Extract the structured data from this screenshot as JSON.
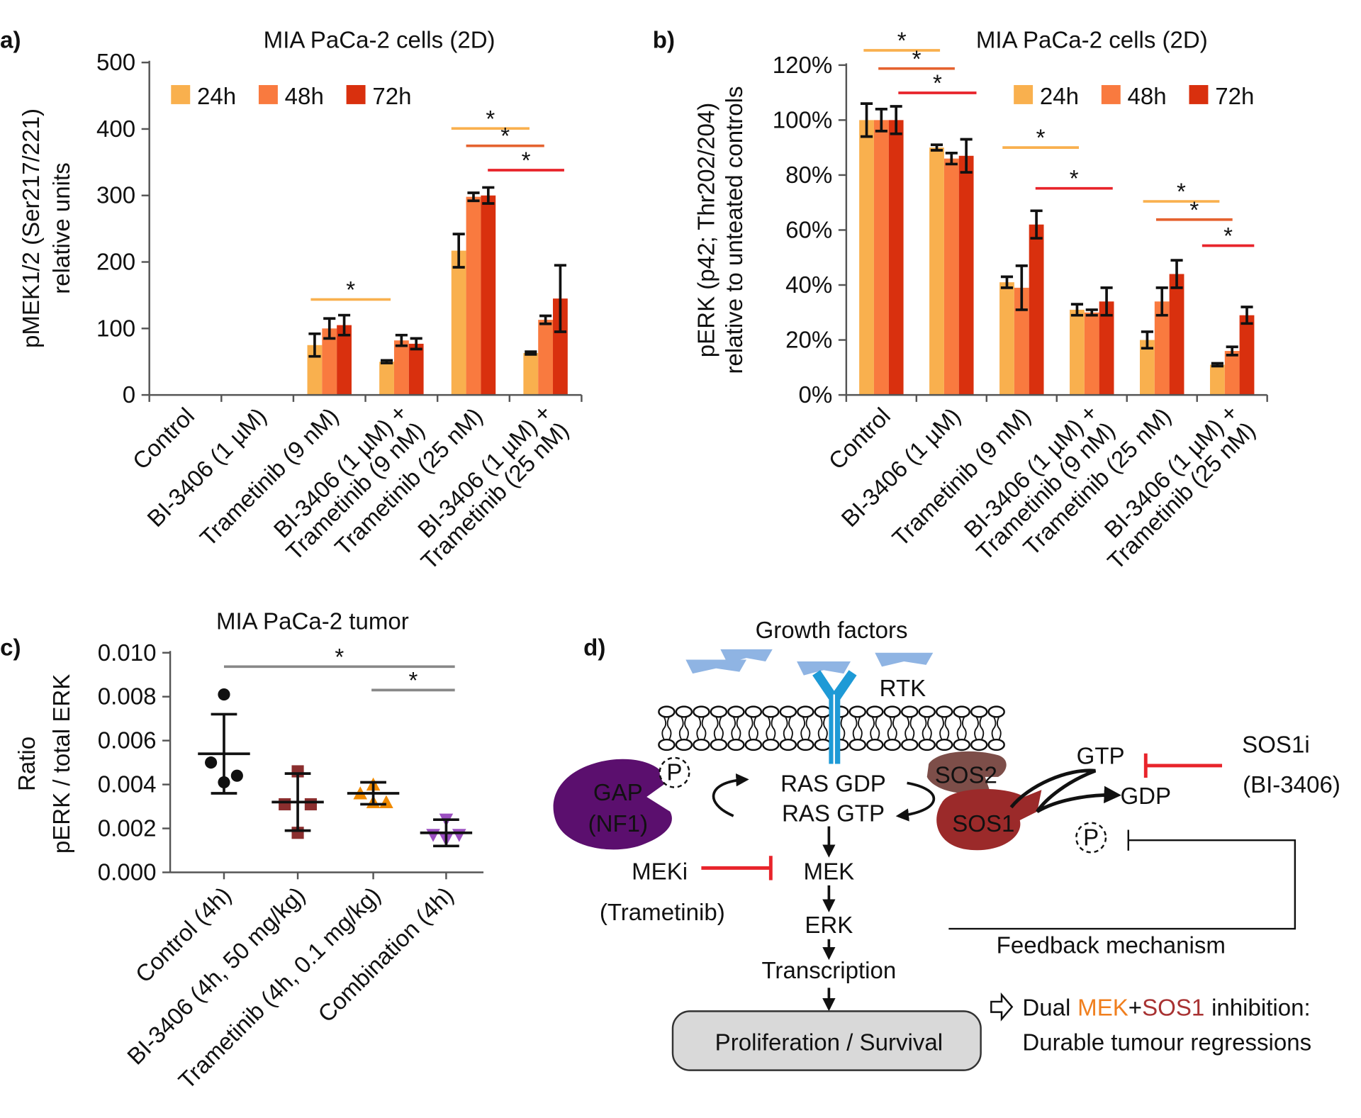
{
  "chart_data": [
    {
      "type": "bar",
      "panel_label": "a)",
      "title": "MIA PaCa-2 cells (2D)",
      "ylabel": [
        "pMEK1/2 (Ser217/221)",
        "relative units"
      ],
      "categories": [
        "Control",
        "BI-3406 (1 µM)",
        "Trametinib (9 nM)",
        "BI-3406 (1 µM) + Trametinib (9 nM)",
        "Trametinib (25 nM)",
        "BI-3406 (1 µM) + Trametinib (25 nM)"
      ],
      "series": [
        {
          "name": "24h",
          "color": "#f9b04e",
          "values": [
            0,
            0,
            75,
            50,
            217,
            63
          ],
          "errors": [
            null,
            null,
            17,
            2,
            25,
            2
          ]
        },
        {
          "name": "48h",
          "color": "#f97a3f",
          "values": [
            0,
            0,
            100,
            82,
            298,
            113
          ],
          "errors": [
            null,
            null,
            15,
            8,
            6,
            6
          ]
        },
        {
          "name": "72h",
          "color": "#d9300e",
          "values": [
            0,
            0,
            105,
            77,
            300,
            145
          ],
          "errors": [
            null,
            null,
            15,
            8,
            12,
            50
          ]
        }
      ],
      "ylim": [
        0,
        500
      ],
      "yticks": [
        0,
        100,
        200,
        300,
        400,
        500
      ],
      "annotations": [
        "*",
        "*",
        "*",
        "*"
      ]
    },
    {
      "type": "bar",
      "panel_label": "b)",
      "title": "MIA PaCa-2 cells (2D)",
      "ylabel": [
        "pERK (p42; Thr202/204)",
        "relative to unteated controls"
      ],
      "categories": [
        "Control",
        "BI-3406 (1 µM)",
        "Trametinib (9 nM)",
        "BI-3406 (1 µM) + Trametinib (9 nM)",
        "Trametinib (25 nM)",
        "BI-3406 (1 µM) + Trametinib (25 nM)"
      ],
      "series": [
        {
          "name": "24h",
          "color": "#f9b04e",
          "values": [
            100,
            90,
            41,
            31,
            20,
            11
          ],
          "errors": [
            6,
            1,
            2,
            2,
            3,
            0.5
          ]
        },
        {
          "name": "48h",
          "color": "#f97a3f",
          "values": [
            100,
            86,
            39,
            30,
            34,
            16
          ],
          "errors": [
            4,
            2,
            8,
            1,
            5,
            1.5
          ]
        },
        {
          "name": "72h",
          "color": "#d9300e",
          "values": [
            100,
            87,
            62,
            34,
            44,
            29
          ],
          "errors": [
            5,
            6,
            5,
            5,
            5,
            3
          ]
        }
      ],
      "ylim": [
        0,
        120
      ],
      "yticks": [
        {
          "value": 0,
          "label": "0%"
        },
        {
          "value": 20,
          "label": "20%"
        },
        {
          "value": 40,
          "label": "40%"
        },
        {
          "value": 60,
          "label": "60%"
        },
        {
          "value": 80,
          "label": "80%"
        },
        {
          "value": 100,
          "label": "100%"
        },
        {
          "value": 120,
          "label": "120%"
        }
      ],
      "annotations": [
        "*",
        "*",
        "*",
        "*",
        "*",
        "*",
        "*",
        "*"
      ]
    },
    {
      "type": "strip",
      "panel_label": "c)",
      "title": "MIA PaCa-2 tumor",
      "ylabel": [
        "Ratio",
        "pERK / total ERK"
      ],
      "categories": [
        "Control (4h)",
        "BI-3406 (4h, 50 mg/kg)",
        "Trametinib (4h, 0.1 mg/kg)",
        "Combination (4h)"
      ],
      "series": [
        {
          "color": "#111111",
          "marker": "circle",
          "values": [
            0.0081,
            0.005,
            0.0044,
            0.0041
          ],
          "mean": 0.0054,
          "sd": 0.0018
        },
        {
          "color": "#8b2e2e",
          "marker": "square",
          "values": [
            0.0046,
            0.0031,
            0.0031,
            0.0018
          ],
          "mean": 0.0032,
          "sd": 0.0013
        },
        {
          "color": "#f08a00",
          "marker": "triangle",
          "values": [
            0.004,
            0.0036,
            0.0032,
            0.0032
          ],
          "mean": 0.0036,
          "sd": 0.0005
        },
        {
          "color": "#9b4fc0",
          "marker": "triangle-down",
          "values": [
            0.0024,
            0.0017,
            0.0017,
            0.0015
          ],
          "mean": 0.0018,
          "sd": 0.0006
        }
      ],
      "ylim": [
        0,
        0.01
      ],
      "yticks": [
        {
          "value": 0,
          "label": "0.000"
        },
        0.002,
        0.004,
        0.006,
        0.008,
        {
          "value": 0.01,
          "label": "0.010"
        }
      ],
      "annotations": [
        "*",
        "*"
      ]
    }
  ],
  "diagram": {
    "panel_label": "d)",
    "growth_factors": "Growth factors",
    "receptor": "RTK",
    "gap": [
      "GAP",
      "(NF1)"
    ],
    "phospho": [
      "P",
      "P"
    ],
    "ras": [
      "RAS GDP",
      "RAS GTP"
    ],
    "sos2": "SOS2",
    "sos1": "SOS1",
    "gtp": "GTP",
    "gdp": "GDP",
    "sos1_inhibitor": [
      "SOS1i",
      "(BI-3406)"
    ],
    "mek_inhibitor": [
      "MEKi",
      "(Trametinib)"
    ],
    "cascade": [
      "MEK",
      "ERK",
      "Transcription"
    ],
    "outcome": "Proliferation / Survival",
    "feedback": "Feedback mechanism",
    "conclusion": {
      "line1": [
        "Dual",
        "MEK",
        "+",
        "SOS1",
        "inhibition:"
      ],
      "line2": "Durable tumour regressions"
    }
  }
}
